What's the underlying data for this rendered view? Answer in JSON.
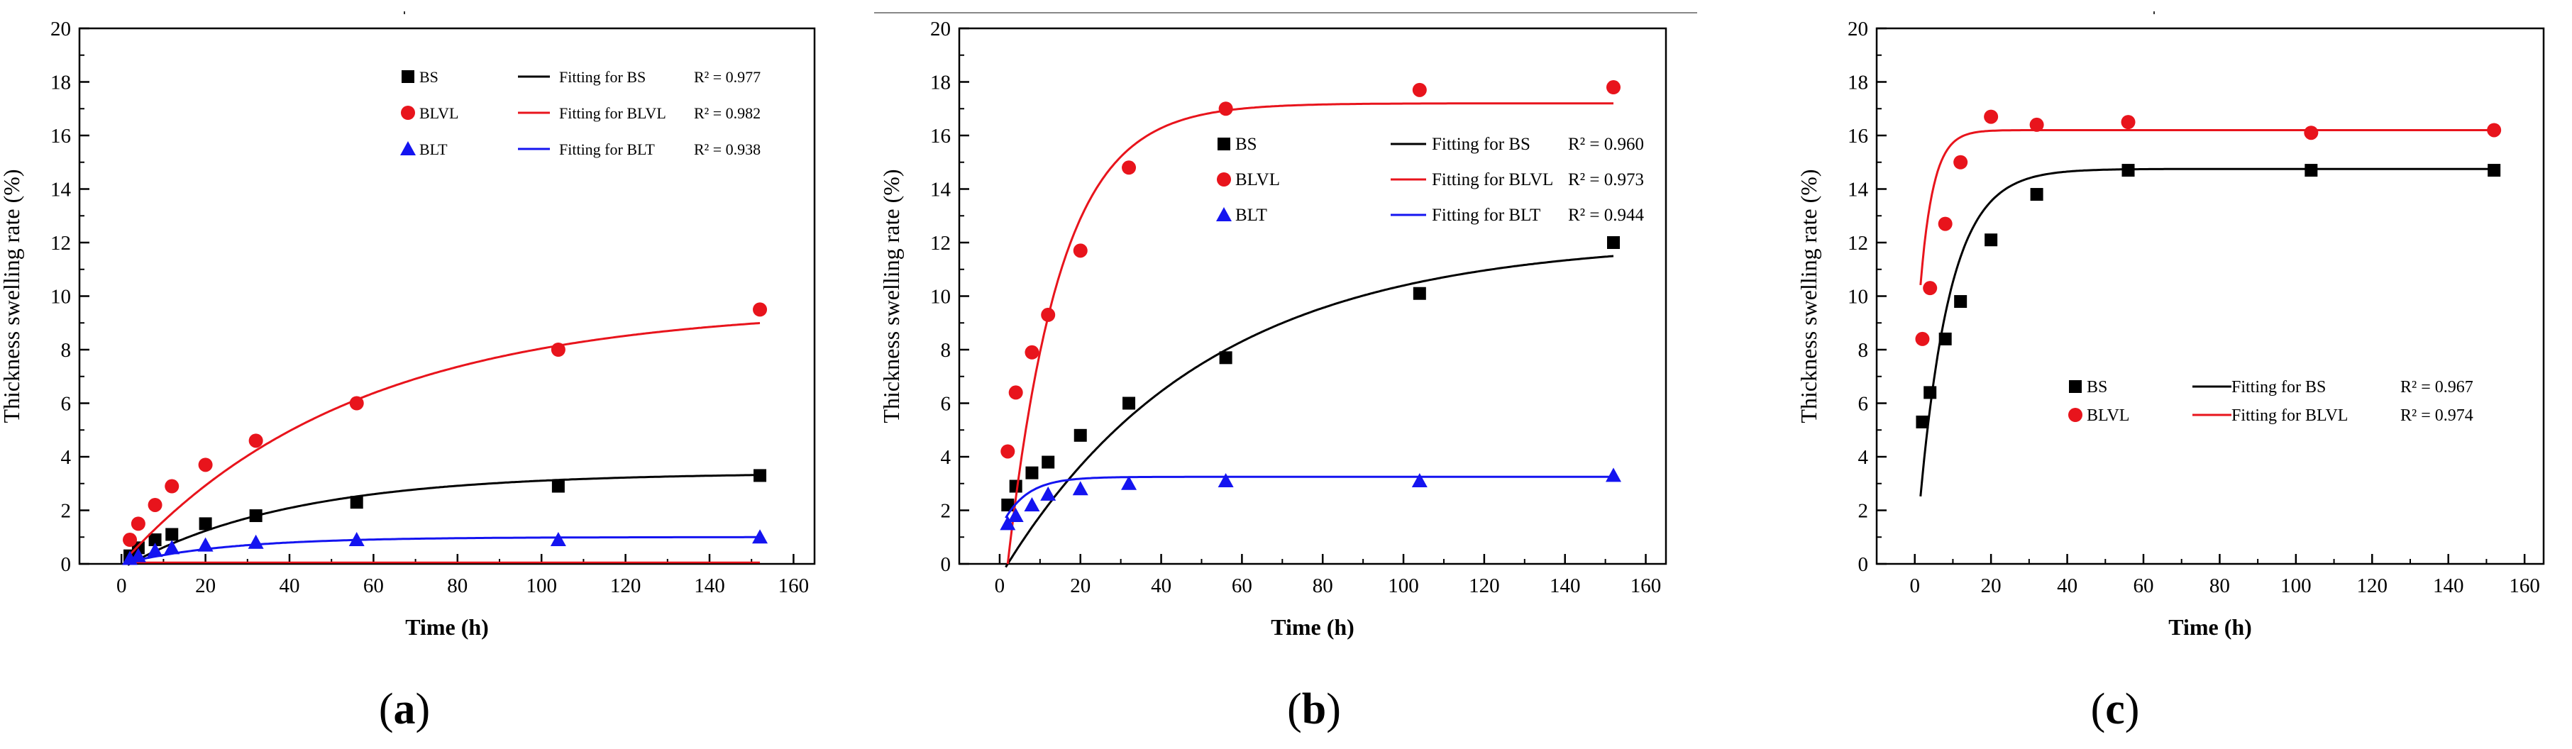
{
  "chart_data": [
    {
      "panel_label": "(a)",
      "type": "scatter",
      "xlabel": "Time (h)",
      "ylabel": "Thickness swelling rate (%)",
      "xlim": [
        -10,
        165
      ],
      "ylim": [
        0,
        20
      ],
      "xticks": [
        0,
        20,
        40,
        60,
        80,
        100,
        120,
        140,
        160
      ],
      "yticks": [
        0,
        2,
        4,
        6,
        8,
        10,
        12,
        14,
        16,
        18,
        20
      ],
      "legend_position": "top-right",
      "series": [
        {
          "name": "BS",
          "marker": "square",
          "color": "#000000",
          "x": [
            2,
            4,
            8,
            12,
            20,
            32,
            56,
            104,
            152
          ],
          "y": [
            0.3,
            0.6,
            0.9,
            1.1,
            1.5,
            1.8,
            2.3,
            2.9,
            3.3
          ],
          "fit_name": "Fitting for BS",
          "r2": "R² = 0.977",
          "fit": {
            "a": 3.4,
            "tau": 40,
            "x0": 2
          }
        },
        {
          "name": "BLVL",
          "marker": "circle",
          "color": "#e8141c",
          "x": [
            2,
            4,
            8,
            12,
            20,
            32,
            56,
            104,
            152
          ],
          "y": [
            0.9,
            1.5,
            2.2,
            2.9,
            3.7,
            4.6,
            6.0,
            8.0,
            9.5
          ],
          "fit_name": "Fitting for BLVL",
          "r2": "R² = 0.982",
          "fit": {
            "a": 9.6,
            "tau": 55,
            "x0": 0
          }
        },
        {
          "name": "BLT",
          "marker": "triangle",
          "color": "#1414f0",
          "x": [
            2,
            4,
            8,
            12,
            20,
            32,
            56,
            104,
            152
          ],
          "y": [
            0.2,
            0.3,
            0.5,
            0.6,
            0.7,
            0.8,
            0.9,
            0.9,
            1.0
          ],
          "fit_name": "Fitting for BLT",
          "r2": "R² = 0.938",
          "fit": {
            "a": 1.0,
            "tau": 25,
            "x0": 0
          }
        }
      ]
    },
    {
      "panel_label": "(b)",
      "type": "scatter",
      "xlabel": "Time (h)",
      "ylabel": "Thickness swelling rate (%)",
      "xlim": [
        -10,
        165
      ],
      "ylim": [
        0,
        20
      ],
      "xticks": [
        0,
        20,
        40,
        60,
        80,
        100,
        120,
        140,
        160
      ],
      "yticks": [
        0,
        2,
        4,
        6,
        8,
        10,
        12,
        14,
        16,
        18,
        20
      ],
      "legend_position": "top-right",
      "series": [
        {
          "name": "BS",
          "marker": "square",
          "color": "#000000",
          "x": [
            2,
            4,
            8,
            12,
            20,
            32,
            56,
            104,
            152
          ],
          "y": [
            2.2,
            2.9,
            3.4,
            3.8,
            4.8,
            6.0,
            7.7,
            10.1,
            12.0
          ],
          "fit_name": "Fitting for BS",
          "r2": "R² = 0.960",
          "fit": {
            "a": 12.1,
            "tau": 50,
            "x0": 2
          }
        },
        {
          "name": "BLVL",
          "marker": "circle",
          "color": "#e8141c",
          "x": [
            2,
            4,
            8,
            12,
            20,
            32,
            56,
            104,
            152
          ],
          "y": [
            4.2,
            6.4,
            7.9,
            9.3,
            11.7,
            14.8,
            17.0,
            17.7,
            17.8
          ],
          "fit_name": "Fitting for BLVL",
          "r2": "R² = 0.973",
          "fit": {
            "a": 17.2,
            "tau": 13,
            "x0": 2
          }
        },
        {
          "name": "BLT",
          "marker": "triangle",
          "color": "#1414f0",
          "x": [
            2,
            4,
            8,
            12,
            20,
            32,
            56,
            104,
            152
          ],
          "y": [
            1.5,
            1.8,
            2.2,
            2.6,
            2.8,
            3.0,
            3.1,
            3.1,
            3.3
          ],
          "fit_name": "Fitting for BLT",
          "r2": "R² = 0.944",
          "fit": {
            "a": 3.25,
            "tau": 6,
            "x0": -3
          }
        }
      ]
    },
    {
      "panel_label": "(c)",
      "type": "scatter",
      "xlabel": "Time (h)",
      "ylabel": "Thickness swelling rate (%)",
      "xlim": [
        -10,
        165
      ],
      "ylim": [
        0,
        20
      ],
      "xticks": [
        0,
        20,
        40,
        60,
        80,
        100,
        120,
        140,
        160
      ],
      "yticks": [
        0,
        2,
        4,
        6,
        8,
        10,
        12,
        14,
        16,
        18,
        20
      ],
      "legend_position": "lower-right",
      "series": [
        {
          "name": "BS",
          "marker": "square",
          "color": "#000000",
          "x": [
            2,
            4,
            8,
            12,
            20,
            32,
            56,
            104,
            152
          ],
          "y": [
            5.3,
            6.4,
            8.4,
            9.8,
            12.1,
            13.8,
            14.7,
            14.7,
            14.7
          ],
          "fit_name": "Fitting for BS",
          "r2": "R² = 0.967",
          "fit": {
            "a": 14.75,
            "tau": 8,
            "x0": 0
          }
        },
        {
          "name": "BLVL",
          "marker": "circle",
          "color": "#e8141c",
          "x": [
            2,
            4,
            8,
            12,
            20,
            32,
            56,
            104,
            152
          ],
          "y": [
            8.4,
            10.3,
            12.7,
            15.0,
            16.7,
            16.4,
            16.5,
            16.1,
            16.2
          ],
          "fit_name": "Fitting for BLVL",
          "r2": "R² = 0.974",
          "fit": {
            "a": 16.2,
            "tau": 3.4,
            "x0": -2
          }
        }
      ]
    }
  ]
}
